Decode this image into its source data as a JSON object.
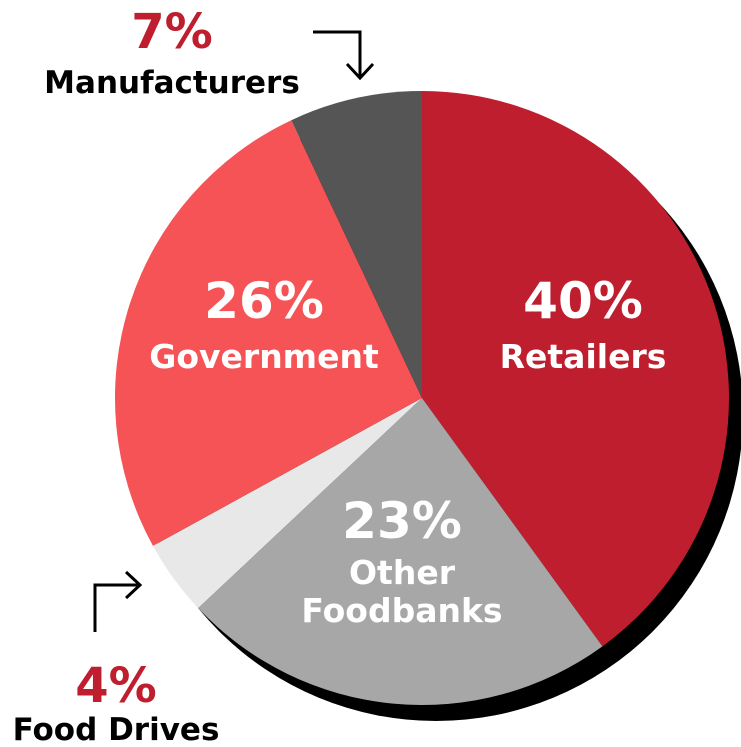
{
  "chart_data": {
    "type": "pie",
    "title": "",
    "slices": [
      {
        "key": "retailers",
        "value": 40,
        "pct_label": "40%",
        "label_lines": [
          "Retailers"
        ],
        "color": "#BE1E2D"
      },
      {
        "key": "other_foodbanks",
        "value": 23,
        "pct_label": "23%",
        "label_lines": [
          "Other",
          "Foodbanks"
        ],
        "color": "#A7A7A7"
      },
      {
        "key": "food_drives",
        "value": 4,
        "pct_label": "4%",
        "label_lines": [
          "Food Drives"
        ],
        "color": "#E8E8E8"
      },
      {
        "key": "government",
        "value": 26,
        "pct_label": "26%",
        "label_lines": [
          "Government"
        ],
        "color": "#F65356"
      },
      {
        "key": "manufacturers",
        "value": 7,
        "pct_label": "7%",
        "label_lines": [
          "Manufacturers"
        ],
        "color": "#555555"
      }
    ],
    "shadow_color": "#000000",
    "outside_percent_color": "#BE1E2D",
    "outside_label_color": "#000000",
    "inside_text_color": "#FFFFFF"
  }
}
